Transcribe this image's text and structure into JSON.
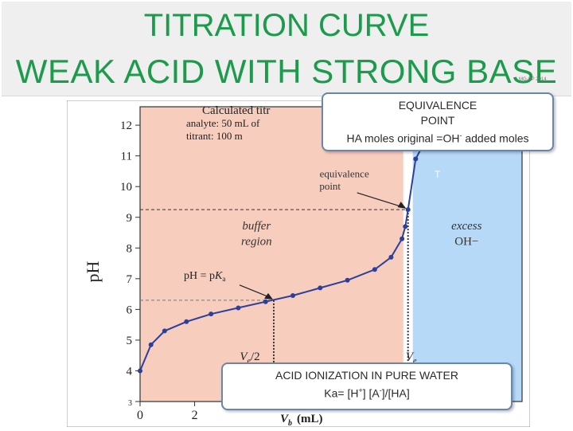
{
  "header": {
    "title_line1": "TITRATION CURVE",
    "title_line2": "WEAK ACID WITH STRONG BASE",
    "credit": "MG-KP 2014"
  },
  "callouts": {
    "equivalence": {
      "line1": "EQUIVALENCE",
      "line2": "POINT",
      "line3_pre": "HA moles original =OH",
      "line3_sup": "-",
      "line3_post": " added moles"
    },
    "ionization": {
      "line1": "ACID IONIZATION IN PURE WATER",
      "ka_pre": "Ka= [H",
      "ka_sup1": "+",
      "ka_mid": "] [A",
      "ka_sup2": "-",
      "ka_post": "]/[HA]"
    },
    "stray_mark": "T"
  },
  "colors": {
    "title": "#1b9b4b",
    "buffer_region": "#f7cdbe",
    "excess_region": "#b6d9f8",
    "curve": "#2b3f9e",
    "callout_border": "#6b86a8"
  },
  "chart_data": {
    "type": "line",
    "title_fragments": [
      "Calculated titr",
      "analyte: 50 mL of",
      "titrant: 100 m"
    ],
    "xlabel": "V",
    "xlabel_sub": "b",
    "xlabel_unit": "(mL)",
    "ylabel": "pH",
    "xlim": [
      0,
      14
    ],
    "ylim": [
      3,
      12.6
    ],
    "x_tick_labels": [
      "0",
      "2"
    ],
    "y_tick_labels": [
      "3",
      "4",
      "5",
      "6",
      "7",
      "8",
      "9",
      "10",
      "11",
      "12"
    ],
    "series": [
      {
        "points": [
          [
            0.0,
            4.0
          ],
          [
            0.4,
            4.85
          ],
          [
            0.9,
            5.3
          ],
          [
            1.7,
            5.6
          ],
          [
            2.6,
            5.85
          ],
          [
            3.6,
            6.05
          ],
          [
            4.6,
            6.25
          ],
          [
            5.6,
            6.45
          ],
          [
            6.6,
            6.7
          ],
          [
            7.6,
            6.95
          ],
          [
            8.6,
            7.3
          ],
          [
            9.2,
            7.7
          ],
          [
            9.6,
            8.3
          ],
          [
            9.72,
            8.7
          ],
          [
            9.82,
            9.25
          ],
          [
            10.1,
            10.9
          ],
          [
            10.4,
            11.4
          ],
          [
            11.0,
            11.8
          ],
          [
            12.0,
            12.1
          ]
        ]
      }
    ],
    "regions": [
      {
        "label_line1": "buffer",
        "label_line2": "region",
        "x_from": 0,
        "x_to": 9.82
      },
      {
        "label_line1": "excess",
        "label_line2": "OH−",
        "x_from": 9.82,
        "x_to": 14
      }
    ],
    "annotations": {
      "equivalence_point": {
        "label_line1": "equivalence",
        "label_line2": "point",
        "x": 9.82,
        "y": 9.25
      },
      "half_equivalence": {
        "label_pre": "pH = p",
        "label_K": "K",
        "label_sub": "a",
        "x": 4.9,
        "y": 6.3
      },
      "ve_half_label": "V",
      "ve_half_sub": "e",
      "ve_half_div": "/2",
      "ve_label": "V",
      "ve_sub": "e"
    }
  }
}
